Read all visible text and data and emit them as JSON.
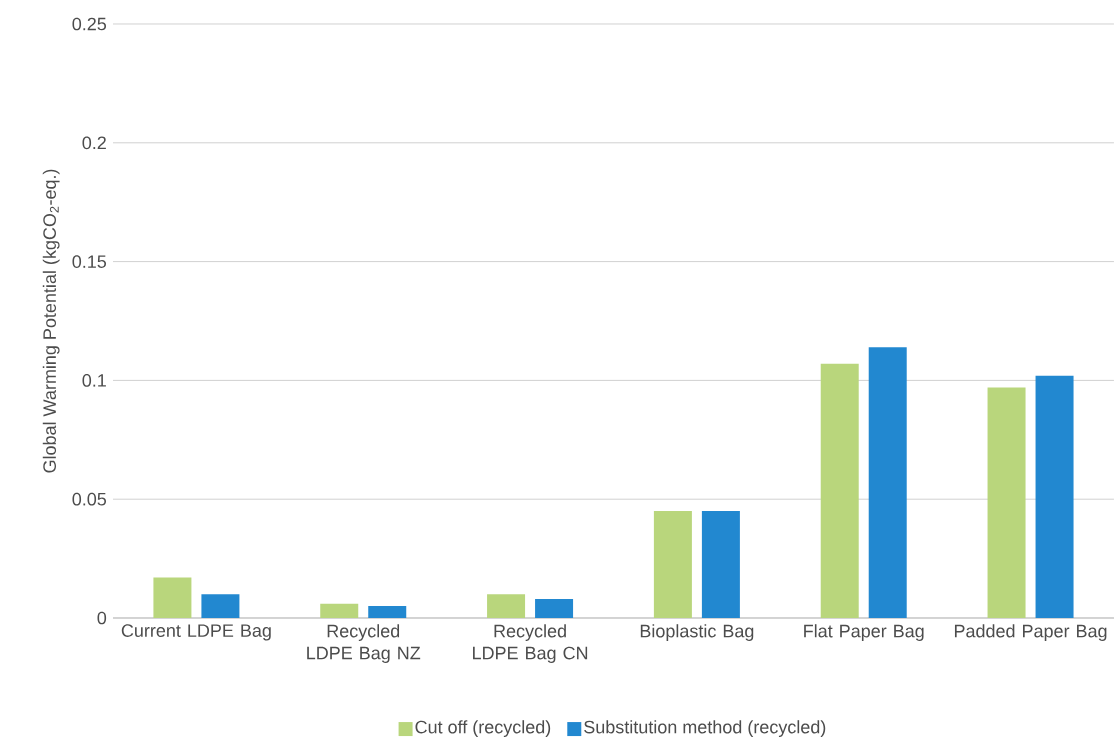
{
  "chart_data": {
    "type": "bar",
    "ylabel": "Global Warming Potential (kgCO$_{2}$-eq.)",
    "categories": [
      "Current LDPE Bag",
      "Recycled LDPE Bag NZ",
      "Recycled LDPE Bag CN",
      "Bioplastic Bag",
      "Flat Paper Bag",
      "Padded Paper Bag"
    ],
    "series": [
      {
        "name": "Cut off (recycled)",
        "color": "#b9d67c",
        "values": [
          0.017,
          0.006,
          0.01,
          0.045,
          0.107,
          0.097
        ]
      },
      {
        "name": "Substitution method (recycled)",
        "color": "#2288d0",
        "values": [
          0.01,
          0.005,
          0.008,
          0.045,
          0.114,
          0.102
        ]
      }
    ],
    "ylim": [
      0,
      0.25
    ],
    "yticks": [
      0,
      0.05,
      0.1,
      0.15,
      0.2,
      0.25
    ],
    "grid": "y",
    "legend": "bottom"
  }
}
